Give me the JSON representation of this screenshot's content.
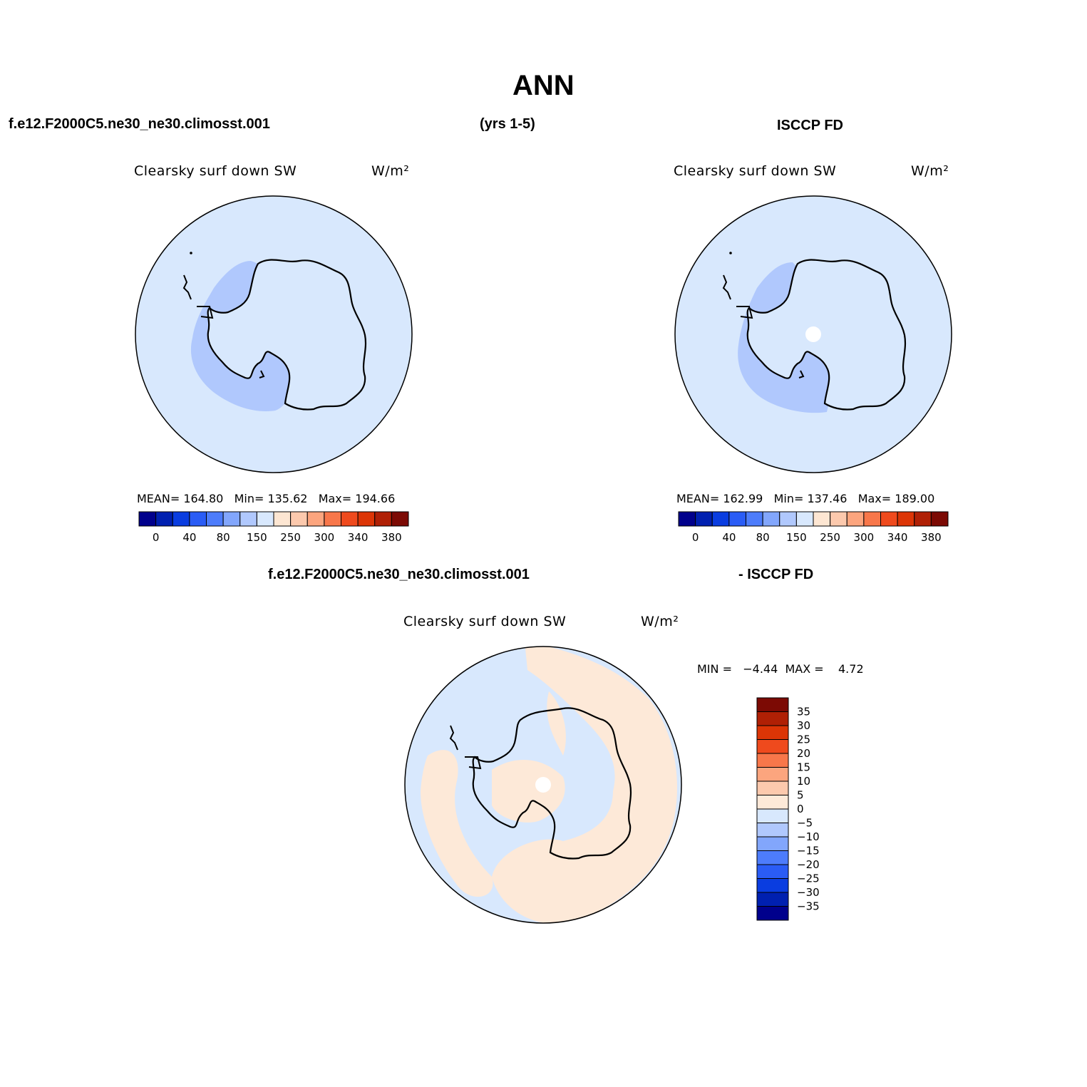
{
  "title": "ANN",
  "header": {
    "case_name": "f.e12.F2000C5.ne30_ne30.climosst.001",
    "years": "(yrs 1-5)",
    "obs_name": "ISCCP FD",
    "diff_case_name": "f.e12.F2000C5.ne30_ne30.climosst.001",
    "diff_obs_name": "- ISCCP FD"
  },
  "panels": {
    "model": {
      "variable": "Clearsky surf down SW",
      "units": "W/m²",
      "stats": "MEAN= 164.80   Min= 135.62   Max= 194.66"
    },
    "obs": {
      "variable": "Clearsky surf down SW",
      "units": "W/m²",
      "stats": "MEAN= 162.99   Min= 137.46   Max= 189.00"
    },
    "diff": {
      "variable": "Clearsky surf down SW",
      "units": "W/m²",
      "stats": "MIN =   −4.44  MAX =    4.72"
    }
  },
  "chart_data": [
    {
      "type": "heatmap",
      "projection": "south-polar-stereographic",
      "variable": "Clearsky surf down SW",
      "units": "W/m²",
      "mean": 164.8,
      "min": 135.62,
      "max": 194.66,
      "colorbar_labels": [
        "0",
        "40",
        "80",
        "150",
        "250",
        "300",
        "340",
        "380"
      ],
      "colorbar_colors": [
        "#00008c",
        "#0020b0",
        "#0a3de0",
        "#2a5cf5",
        "#4d7cfb",
        "#82a6fc",
        "#b0c8fd",
        "#d8e8fd",
        "#fde6d2",
        "#fcc9ad",
        "#fca57e",
        "#f8774a",
        "#ef4a1d",
        "#dc3506",
        "#b02005",
        "#7c0a04"
      ],
      "legend_position": "bottom"
    },
    {
      "type": "heatmap",
      "projection": "south-polar-stereographic",
      "variable": "Clearsky surf down SW",
      "units": "W/m²",
      "mean": 162.99,
      "min": 137.46,
      "max": 189.0,
      "colorbar_labels": [
        "0",
        "40",
        "80",
        "150",
        "250",
        "300",
        "340",
        "380"
      ],
      "colorbar_colors": [
        "#00008c",
        "#0020b0",
        "#0a3de0",
        "#2a5cf5",
        "#4d7cfb",
        "#82a6fc",
        "#b0c8fd",
        "#d8e8fd",
        "#fde6d2",
        "#fcc9ad",
        "#fca57e",
        "#f8774a",
        "#ef4a1d",
        "#dc3506",
        "#b02005",
        "#7c0a04"
      ],
      "legend_position": "bottom"
    },
    {
      "type": "heatmap",
      "projection": "south-polar-stereographic",
      "variable": "Clearsky surf down SW",
      "units": "W/m²",
      "min": -4.44,
      "max": 4.72,
      "colorbar_labels": [
        "35",
        "30",
        "25",
        "20",
        "15",
        "10",
        "5",
        "0",
        "−5",
        "−10",
        "−15",
        "−20",
        "−25",
        "−30",
        "−35"
      ],
      "colorbar_colors": [
        "#7c0a04",
        "#b02005",
        "#dc3506",
        "#ef4a1d",
        "#f8774a",
        "#fca57e",
        "#fcc9ad",
        "#fde9d8",
        "#d8e8fd",
        "#b0c8fd",
        "#82a6fc",
        "#4d7cfb",
        "#2a5cf5",
        "#0a3de0",
        "#0020b0",
        "#00008c"
      ],
      "legend_position": "right"
    }
  ]
}
